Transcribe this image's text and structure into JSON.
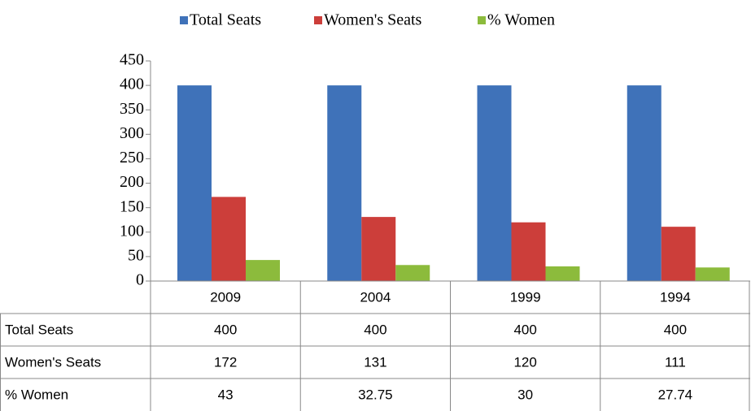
{
  "chart_data": {
    "type": "bar",
    "categories": [
      "2009",
      "2004",
      "1999",
      "1994"
    ],
    "series": [
      {
        "name": "Total Seats",
        "color": "#3f72b9",
        "values": [
          400,
          400,
          400,
          400
        ]
      },
      {
        "name": "Women's Seats",
        "color": "#cc3e3a",
        "values": [
          172,
          131,
          120,
          111
        ]
      },
      {
        "name": "% Women",
        "color": "#8cbb3c",
        "values": [
          43,
          32.75,
          30,
          27.74
        ]
      }
    ],
    "ylim": [
      0,
      450
    ],
    "yticks": [
      0,
      50,
      100,
      150,
      200,
      250,
      300,
      350,
      400,
      450
    ],
    "legend": "top",
    "data_table": true
  }
}
